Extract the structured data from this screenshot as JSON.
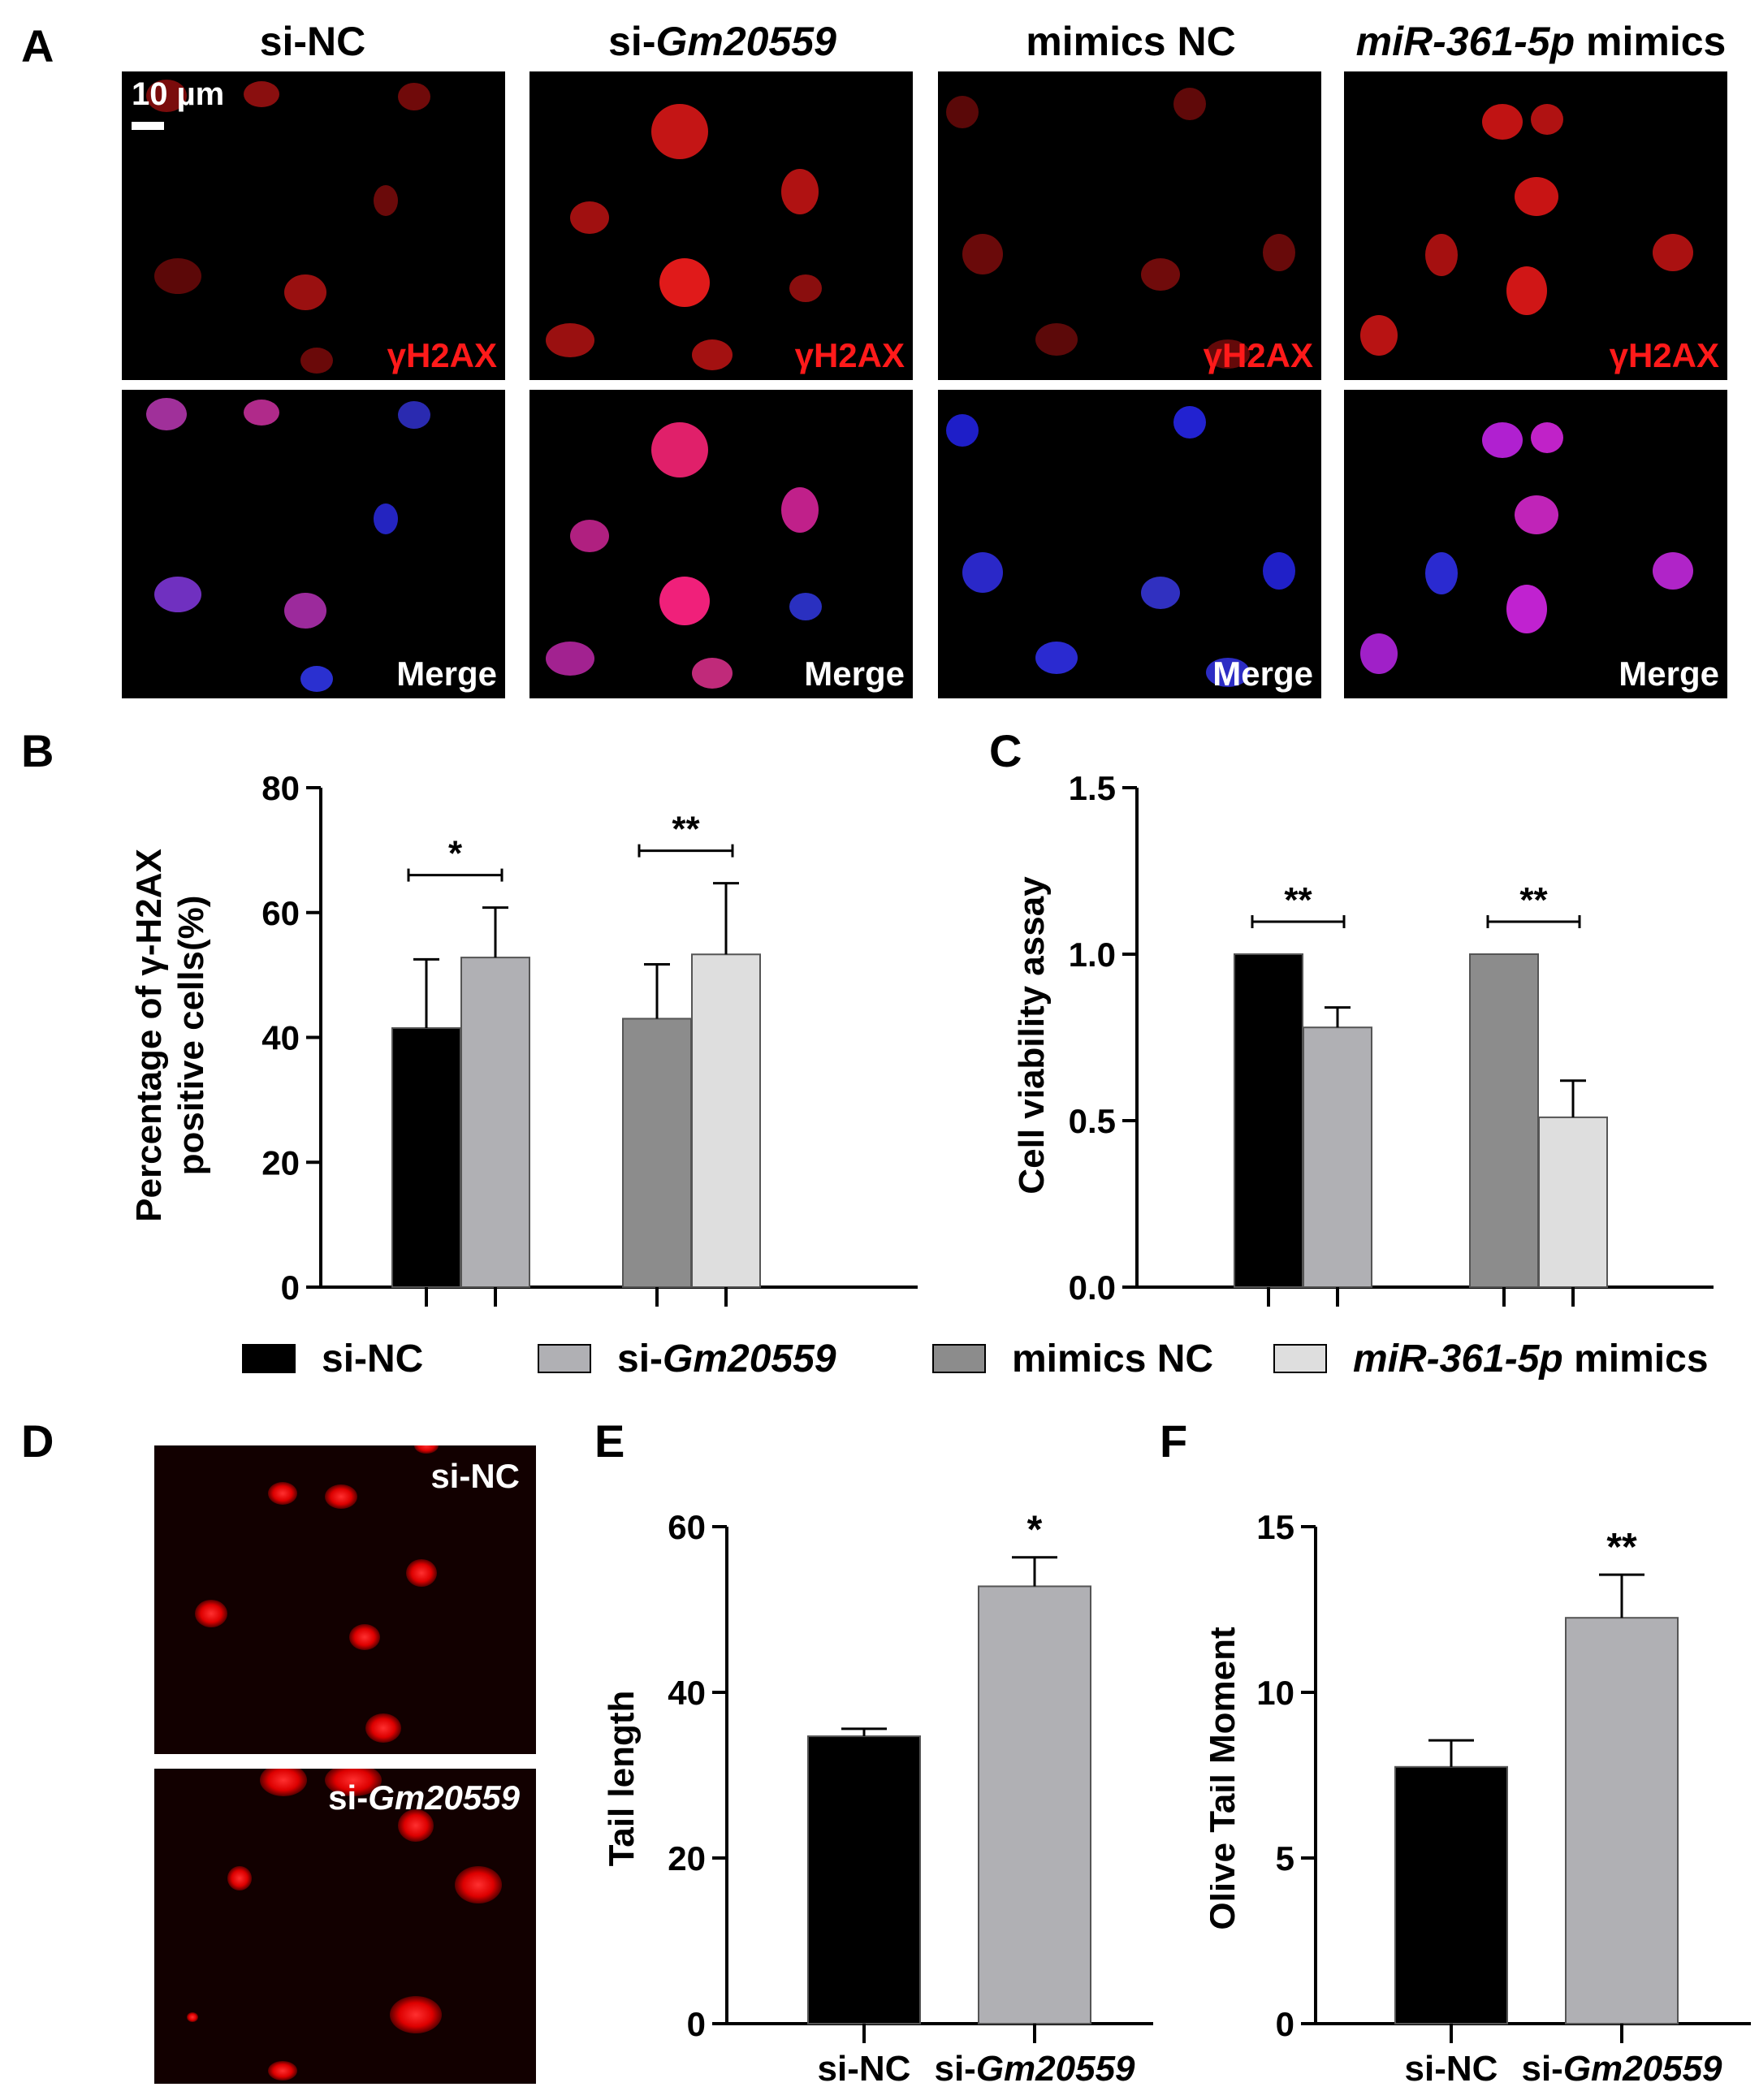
{
  "panels": {
    "A": "A",
    "B": "B",
    "C": "C",
    "D": "D",
    "E": "E",
    "F": "F"
  },
  "panel_a": {
    "columns": [
      {
        "prefix": "si-",
        "italic": "Gm20559",
        "suffix": "",
        "plain": "si-NC"
      },
      {
        "prefix": "si-",
        "italic": "Gm20559",
        "suffix": ""
      },
      {
        "plain": "mimics NC"
      },
      {
        "prefix": "",
        "italic": "miR-361-5p",
        "suffix": " mimics"
      }
    ],
    "col_titles": {
      "c1": "si-NC",
      "c2_prefix": "si-",
      "c2_italic": "Gm20559",
      "c3": "mimics NC",
      "c4_italic": "miR-361-5p",
      "c4_suffix": " mimics"
    },
    "scale_bar": "10 µm",
    "row_labels": {
      "top": "γH2AX",
      "bottom": "Merge"
    }
  },
  "legend": {
    "items": [
      {
        "prefix": "si-NC",
        "italic": "",
        "suffix": "",
        "color": "#000000"
      },
      {
        "prefix": "si-",
        "italic": "Gm20559",
        "suffix": "",
        "color": "#b0b0b4"
      },
      {
        "prefix": "mimics NC",
        "italic": "",
        "suffix": "",
        "color": "#8c8c8c"
      },
      {
        "prefix": "",
        "italic": "miR-361-5p",
        "suffix": " mimics",
        "color": "#dedede"
      }
    ]
  },
  "panel_d": {
    "top_label": "si-NC",
    "bottom_prefix": "si-",
    "bottom_italic": "Gm20559"
  },
  "chart_data": [
    {
      "id": "B",
      "type": "bar",
      "ylabel": [
        "Percentage of γ-H2AX",
        "positive cells(%)"
      ],
      "ylim": [
        0,
        80
      ],
      "yticks": [
        0,
        20,
        40,
        60,
        80
      ],
      "series": [
        {
          "name": "si-NC",
          "value": 41.5,
          "error": 11
        },
        {
          "name": "si-Gm20559",
          "value": 52.8,
          "error": 8
        },
        {
          "name": "mimics NC",
          "value": 43,
          "error": 8.7
        },
        {
          "name": "miR-361-5p mimics",
          "value": 53.3,
          "error": 11.4
        }
      ],
      "significance": [
        {
          "between": [
            0,
            1
          ],
          "label": "*"
        },
        {
          "between": [
            2,
            3
          ],
          "label": "**"
        }
      ]
    },
    {
      "id": "C",
      "type": "bar",
      "ylabel": [
        "Cell viability assay"
      ],
      "ylim": [
        0,
        1.5
      ],
      "yticks": [
        "0.0",
        "0.5",
        "1.0",
        "1.5"
      ],
      "series": [
        {
          "name": "si-NC",
          "value": 1.0,
          "error": 0
        },
        {
          "name": "si-Gm20559",
          "value": 0.78,
          "error": 0.06
        },
        {
          "name": "mimics NC",
          "value": 1.0,
          "error": 0
        },
        {
          "name": "miR-361-5p mimics",
          "value": 0.51,
          "error": 0.11
        }
      ],
      "significance": [
        {
          "between": [
            0,
            1
          ],
          "label": "**"
        },
        {
          "between": [
            2,
            3
          ],
          "label": "**"
        }
      ]
    },
    {
      "id": "E",
      "type": "bar",
      "ylabel": [
        "Tail length"
      ],
      "ylim": [
        0,
        60
      ],
      "yticks": [
        0,
        20,
        40,
        60
      ],
      "categories": [
        "si-NC",
        "si-Gm20559"
      ],
      "series": [
        {
          "name": "si-NC",
          "value": 34.7,
          "error": 0.9
        },
        {
          "name": "si-Gm20559",
          "value": 52.8,
          "error": 3.5
        }
      ],
      "significance": [
        {
          "over": 1,
          "label": "*"
        }
      ]
    },
    {
      "id": "F",
      "type": "bar",
      "ylabel": [
        "Olive Tail Moment"
      ],
      "ylim": [
        0,
        15
      ],
      "yticks": [
        0,
        5,
        10,
        15
      ],
      "categories": [
        "si-NC",
        "si-Gm20559"
      ],
      "series": [
        {
          "name": "si-NC",
          "value": 7.75,
          "error": 0.8
        },
        {
          "name": "si-Gm20559",
          "value": 12.25,
          "error": 1.3
        }
      ],
      "significance": [
        {
          "over": 1,
          "label": "**"
        }
      ]
    }
  ]
}
